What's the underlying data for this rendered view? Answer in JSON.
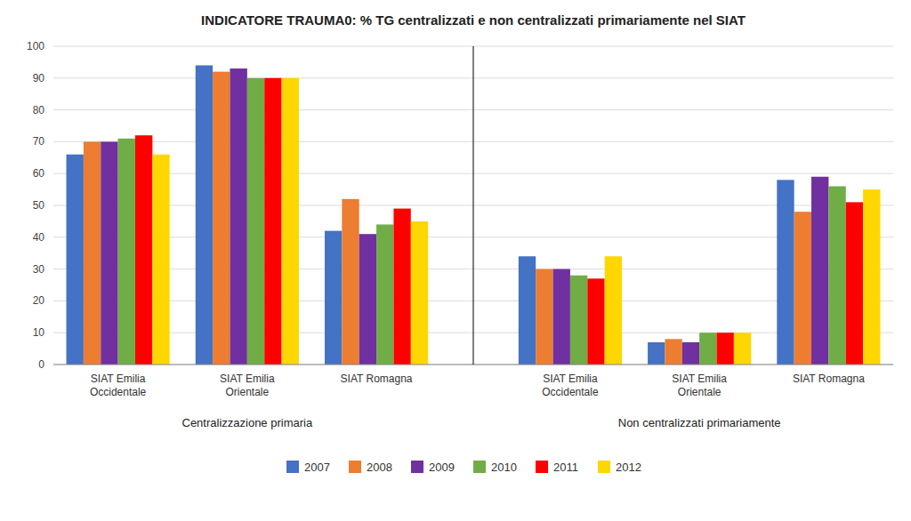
{
  "chart_data": {
    "type": "bar",
    "title": "INDICATORE TRAUMA0: % TG centralizzati e non centralizzati primariamente nel SIAT",
    "categories": [
      "SIAT Emilia\nOccidentale",
      "SIAT Emilia\nOrientale",
      "SIAT Romagna",
      "SIAT Emilia\nOccidentale",
      "SIAT Emilia\nOrientale",
      "SIAT Romagna"
    ],
    "annotations": [
      "Centralizzazione primaria",
      "Non centralizzati primariamente"
    ],
    "series": [
      {
        "name": "2007",
        "color": "#4472C4",
        "values": [
          66,
          94,
          42,
          34,
          7,
          58
        ]
      },
      {
        "name": "2008",
        "color": "#ED7D31",
        "values": [
          70,
          92,
          52,
          30,
          8,
          48
        ]
      },
      {
        "name": "2009",
        "color": "#7030A0",
        "values": [
          70,
          93,
          41,
          30,
          7,
          59
        ]
      },
      {
        "name": "2010",
        "color": "#70AD47",
        "values": [
          71,
          90,
          44,
          28,
          10,
          56
        ]
      },
      {
        "name": "2011",
        "color": "#FF0000",
        "values": [
          72,
          90,
          49,
          27,
          10,
          51
        ]
      },
      {
        "name": "2012",
        "color": "#FFD700",
        "values": [
          66,
          90,
          45,
          34,
          10,
          55
        ]
      }
    ],
    "ylim": [
      0,
      100
    ],
    "yticks": [
      0,
      10,
      20,
      30,
      40,
      50,
      60,
      70,
      80,
      90,
      100
    ],
    "grid": true,
    "legend": "bottom"
  }
}
